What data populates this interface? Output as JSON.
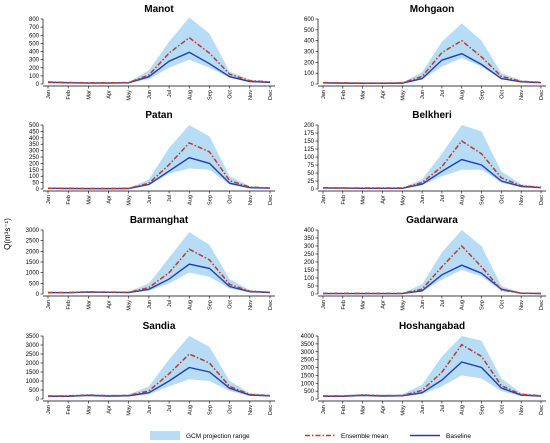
{
  "y_axis_label": "Q(m³s⁻¹)",
  "legend": {
    "range": "GCM projection range",
    "mean": "Ensemble mean",
    "baseline": "Baseline"
  },
  "colors": {
    "range_fill": "#b7dcf5",
    "ensemble_mean": "#c0392b",
    "ensemble_mean_dash": "#6b5b2e",
    "baseline": "#1f3fb4"
  },
  "chart_data": [
    {
      "type": "line",
      "title": "Manot",
      "categories": [
        "Jan",
        "Feb",
        "Mar",
        "Apr",
        "May",
        "Jun",
        "Jul",
        "Aug",
        "Sep",
        "Oct",
        "Nov",
        "Dec"
      ],
      "yticks": [
        0,
        100,
        200,
        300,
        400,
        500,
        600,
        700,
        800
      ],
      "ylim": [
        0,
        800
      ],
      "series": [
        {
          "name": "Baseline",
          "values": [
            20,
            15,
            12,
            12,
            15,
            90,
            280,
            390,
            250,
            90,
            30,
            20
          ]
        },
        {
          "name": "Ensemble mean",
          "values": [
            25,
            18,
            15,
            15,
            18,
            110,
            380,
            570,
            380,
            120,
            40,
            25
          ]
        },
        {
          "name": "GCM projection range",
          "lower": [
            15,
            12,
            10,
            10,
            12,
            60,
            200,
            300,
            200,
            80,
            25,
            15
          ],
          "upper": [
            35,
            25,
            20,
            20,
            25,
            170,
            520,
            820,
            620,
            150,
            55,
            35
          ]
        }
      ]
    },
    {
      "type": "line",
      "title": "Mohgaon",
      "categories": [
        "Jan",
        "Feb",
        "Mar",
        "Apr",
        "May",
        "Jun",
        "Jul",
        "Aug",
        "Sep",
        "Oct",
        "Nov",
        "Dec"
      ],
      "yticks": [
        0,
        100,
        200,
        300,
        400,
        500,
        600
      ],
      "ylim": [
        0,
        600
      ],
      "series": [
        {
          "name": "Baseline",
          "values": [
            10,
            8,
            7,
            7,
            8,
            50,
            220,
            280,
            180,
            50,
            20,
            12
          ]
        },
        {
          "name": "Ensemble mean",
          "values": [
            12,
            10,
            8,
            8,
            10,
            70,
            290,
            400,
            250,
            70,
            25,
            15
          ]
        },
        {
          "name": "GCM projection range",
          "lower": [
            8,
            6,
            5,
            5,
            6,
            40,
            160,
            240,
            160,
            45,
            15,
            10
          ],
          "upper": [
            18,
            14,
            12,
            12,
            14,
            110,
            390,
            560,
            400,
            100,
            35,
            20
          ]
        }
      ]
    },
    {
      "type": "line",
      "title": "Patan",
      "categories": [
        "Jan",
        "Feb",
        "Mar",
        "Apr",
        "May",
        "Jun",
        "Jul",
        "Aug",
        "Sep",
        "Oct",
        "Nov",
        "Dec"
      ],
      "yticks": [
        0,
        50,
        100,
        150,
        200,
        250,
        300,
        350,
        400,
        450,
        500
      ],
      "ylim": [
        0,
        500
      ],
      "series": [
        {
          "name": "Baseline",
          "values": [
            5,
            4,
            3,
            3,
            4,
            35,
            140,
            245,
            200,
            45,
            10,
            6
          ]
        },
        {
          "name": "Ensemble mean",
          "values": [
            6,
            5,
            4,
            4,
            5,
            45,
            190,
            360,
            290,
            65,
            15,
            8
          ]
        },
        {
          "name": "GCM projection range",
          "lower": [
            4,
            3,
            2,
            2,
            3,
            30,
            120,
            160,
            150,
            35,
            8,
            5
          ],
          "upper": [
            9,
            7,
            6,
            6,
            7,
            75,
            320,
            500,
            410,
            100,
            22,
            10
          ]
        }
      ]
    },
    {
      "type": "line",
      "title": "Belkheri",
      "categories": [
        "Jan",
        "Feb",
        "Mar",
        "Apr",
        "May",
        "Jun",
        "Jul",
        "Aug",
        "Sep",
        "Oct",
        "Nov",
        "Dec"
      ],
      "yticks": [
        0,
        25,
        50,
        75,
        100,
        125,
        150,
        175,
        200
      ],
      "ylim": [
        0,
        200
      ],
      "series": [
        {
          "name": "Baseline",
          "values": [
            3,
            3,
            2,
            2,
            2,
            15,
            55,
            92,
            75,
            25,
            8,
            4
          ]
        },
        {
          "name": "Ensemble mean",
          "values": [
            4,
            3,
            3,
            3,
            3,
            20,
            70,
            150,
            110,
            35,
            10,
            5
          ]
        },
        {
          "name": "GCM projection range",
          "lower": [
            2,
            2,
            1,
            1,
            1,
            12,
            40,
            60,
            60,
            20,
            5,
            3
          ],
          "upper": [
            6,
            5,
            4,
            4,
            4,
            30,
            110,
            200,
            180,
            55,
            15,
            7
          ]
        }
      ]
    },
    {
      "type": "line",
      "title": "Barmanghat",
      "categories": [
        "Jan",
        "Feb",
        "Mar",
        "Apr",
        "May",
        "Jun",
        "Jul",
        "Aug",
        "Sep",
        "Oct",
        "Nov",
        "Dec"
      ],
      "yticks": [
        0,
        500,
        1000,
        1500,
        2000,
        2500,
        3000
      ],
      "ylim": [
        0,
        3000
      ],
      "series": [
        {
          "name": "Baseline",
          "values": [
            60,
            60,
            90,
            80,
            70,
            220,
            700,
            1400,
            1200,
            350,
            110,
            70
          ]
        },
        {
          "name": "Ensemble mean",
          "values": [
            70,
            70,
            100,
            90,
            80,
            300,
            1000,
            2100,
            1600,
            450,
            130,
            80
          ]
        },
        {
          "name": "GCM projection range",
          "lower": [
            50,
            50,
            70,
            60,
            50,
            150,
            500,
            1000,
            800,
            250,
            80,
            50
          ],
          "upper": [
            100,
            100,
            130,
            120,
            110,
            500,
            1700,
            2900,
            2300,
            700,
            180,
            110
          ]
        }
      ]
    },
    {
      "type": "line",
      "title": "Gadarwara",
      "categories": [
        "Jan",
        "Feb",
        "Mar",
        "Apr",
        "May",
        "Jun",
        "Jul",
        "Aug",
        "Sep",
        "Oct",
        "Nov",
        "Dec"
      ],
      "yticks": [
        0,
        50,
        100,
        150,
        200,
        250,
        300,
        350,
        400
      ],
      "ylim": [
        0,
        400
      ],
      "series": [
        {
          "name": "Baseline",
          "values": [
            3,
            3,
            3,
            3,
            3,
            20,
            120,
            180,
            130,
            30,
            5,
            3
          ]
        },
        {
          "name": "Ensemble mean",
          "values": [
            4,
            4,
            4,
            4,
            4,
            30,
            170,
            300,
            170,
            25,
            5,
            4
          ]
        },
        {
          "name": "GCM projection range",
          "lower": [
            2,
            2,
            2,
            2,
            2,
            15,
            90,
            150,
            110,
            20,
            3,
            2
          ],
          "upper": [
            6,
            6,
            6,
            6,
            6,
            60,
            260,
            400,
            300,
            50,
            8,
            5
          ]
        }
      ]
    },
    {
      "type": "line",
      "title": "Sandia",
      "categories": [
        "Jan",
        "Feb",
        "Mar",
        "Apr",
        "May",
        "Jun",
        "Jul",
        "Aug",
        "Sep",
        "Oct",
        "Nov",
        "Dec"
      ],
      "yticks": [
        0,
        500,
        1000,
        1500,
        2000,
        2500,
        3000,
        3500
      ],
      "ylim": [
        0,
        3500
      ],
      "series": [
        {
          "name": "Baseline",
          "values": [
            150,
            150,
            200,
            160,
            180,
            350,
            1000,
            1750,
            1500,
            600,
            220,
            170
          ]
        },
        {
          "name": "Ensemble mean",
          "values": [
            170,
            170,
            220,
            180,
            200,
            450,
            1400,
            2500,
            2000,
            700,
            250,
            190
          ]
        },
        {
          "name": "GCM projection range",
          "lower": [
            120,
            120,
            160,
            130,
            140,
            250,
            700,
            1100,
            1000,
            450,
            170,
            130
          ],
          "upper": [
            220,
            220,
            280,
            240,
            260,
            700,
            2200,
            3500,
            2900,
            1000,
            320,
            240
          ]
        }
      ]
    },
    {
      "type": "line",
      "title": "Hoshangabad",
      "categories": [
        "Jan",
        "Feb",
        "Mar",
        "Apr",
        "May",
        "Jun",
        "Jul",
        "Aug",
        "Sep",
        "Oct",
        "Nov",
        "Dec"
      ],
      "yticks": [
        0,
        500,
        1000,
        1500,
        2000,
        2500,
        3000,
        3500,
        4000
      ],
      "ylim": [
        0,
        4000
      ],
      "series": [
        {
          "name": "Baseline",
          "values": [
            170,
            170,
            230,
            190,
            200,
            400,
            1200,
            2350,
            2000,
            700,
            250,
            180
          ]
        },
        {
          "name": "Ensemble mean",
          "values": [
            190,
            190,
            250,
            210,
            220,
            550,
            1700,
            3450,
            2700,
            850,
            290,
            200
          ]
        },
        {
          "name": "GCM projection range",
          "lower": [
            140,
            140,
            180,
            150,
            160,
            300,
            800,
            1500,
            1300,
            500,
            180,
            140
          ],
          "upper": [
            260,
            260,
            320,
            280,
            300,
            900,
            2700,
            4000,
            3700,
            1300,
            380,
            270
          ]
        }
      ]
    }
  ]
}
